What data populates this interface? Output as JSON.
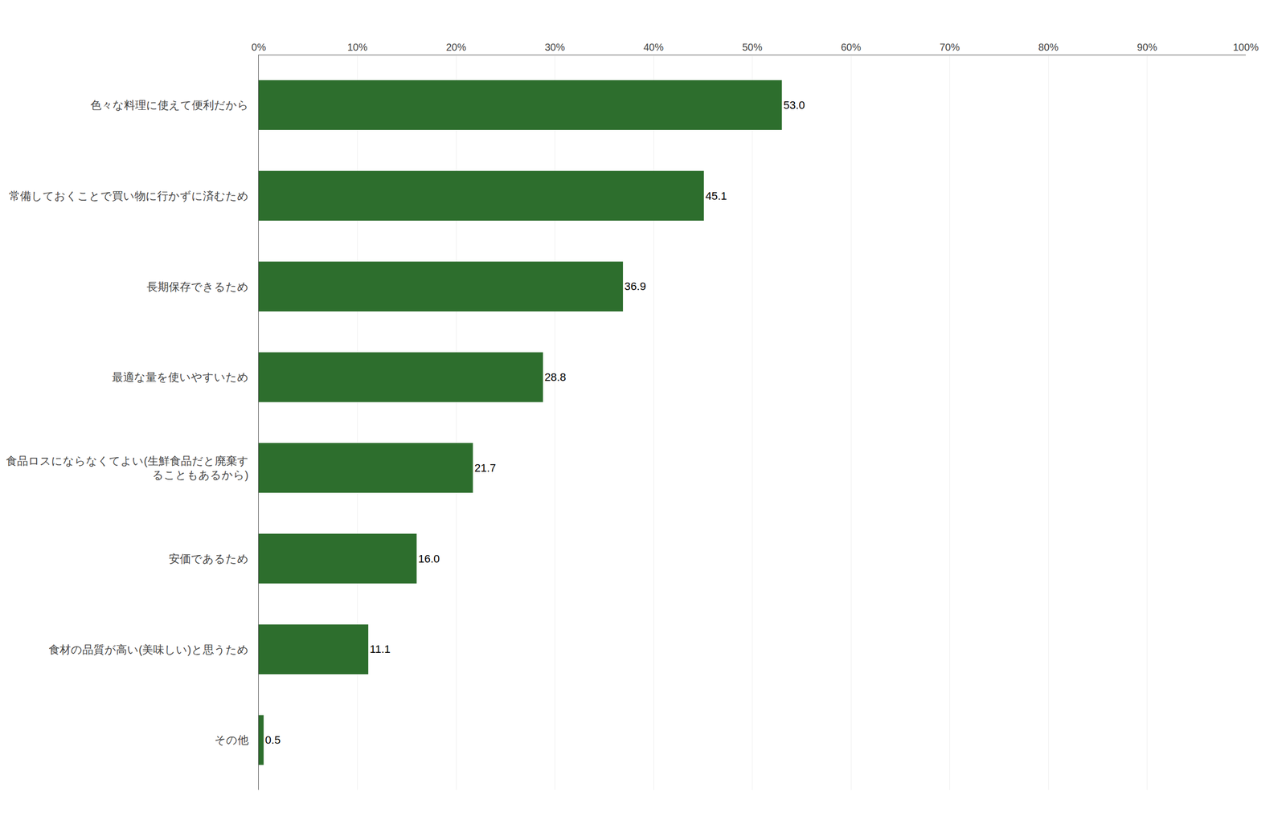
{
  "chart_data": {
    "type": "bar",
    "orientation": "horizontal",
    "categories": [
      "色々な料理に使えて便利だから",
      "常備しておくことで買い物に行かずに済むため",
      "長期保存できるため",
      "最適な量を使いやすいため",
      "食品ロスにならなくてよい(生鮮食品だと廃棄す\nることもあるから)",
      "安価であるため",
      "食材の品質が高い(美味しい)と思うため",
      "その他"
    ],
    "values": [
      53.0,
      45.1,
      36.9,
      28.8,
      21.7,
      16.0,
      11.1,
      0.5
    ],
    "value_labels": [
      "53.0",
      "45.1",
      "36.9",
      "28.8",
      "21.7",
      "16.0",
      "11.1",
      "0.5"
    ],
    "color": "#2d6e2d",
    "xlim": [
      0,
      100
    ],
    "xticks": [
      {
        "value": 0,
        "label": "0%"
      },
      {
        "value": 10,
        "label": "10%"
      },
      {
        "value": 20,
        "label": "20%"
      },
      {
        "value": 30,
        "label": "30%"
      },
      {
        "value": 40,
        "label": "40%"
      },
      {
        "value": 50,
        "label": "50%"
      },
      {
        "value": 60,
        "label": "60%"
      },
      {
        "value": 70,
        "label": "70%"
      },
      {
        "value": 80,
        "label": "80%"
      },
      {
        "value": 90,
        "label": "90%"
      },
      {
        "value": 100,
        "label": "100%"
      }
    ],
    "grid": true,
    "data_labels": true
  }
}
